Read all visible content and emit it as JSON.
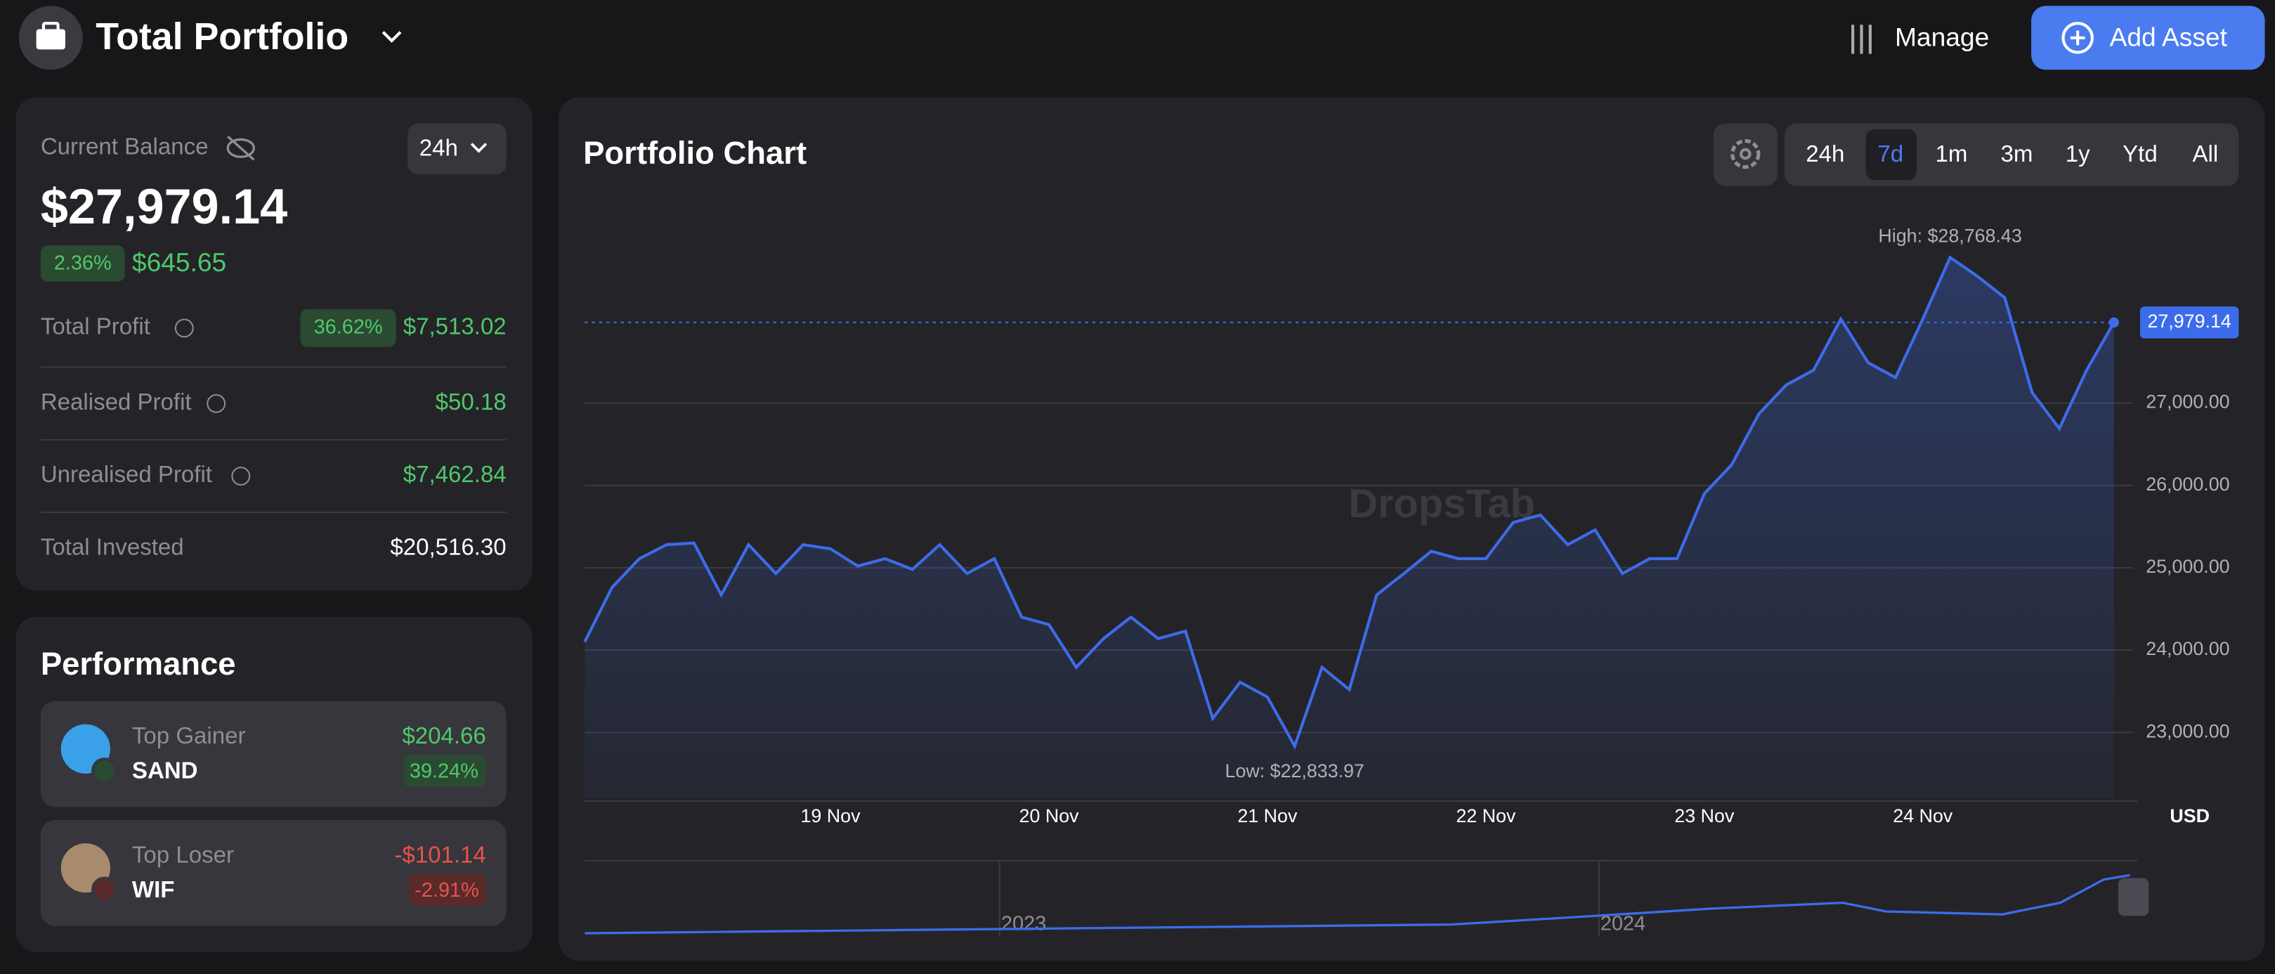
{
  "header": {
    "title": "Total Portfolio",
    "manage": "Manage",
    "add_asset": "Add Asset"
  },
  "balance": {
    "label": "Current Balance",
    "period": "24h",
    "value": "$27,979.14",
    "change_percent": "2.36%",
    "change_value": "$645.65",
    "rows": [
      {
        "label": "Total Profit",
        "percent": "36.62%",
        "value": "$7,513.02"
      },
      {
        "label": "Realised Profit",
        "value": "$50.18"
      },
      {
        "label": "Unrealised Profit",
        "value": "$7,462.84"
      },
      {
        "label": "Total Invested",
        "value": "$20,516.30"
      }
    ]
  },
  "performance": {
    "title": "Performance",
    "items": [
      {
        "label": "Top Gainer",
        "asset": "SAND",
        "value": "$204.66",
        "percent": "39.24%"
      },
      {
        "label": "Top Loser",
        "asset": "WIF",
        "value": "-$101.14",
        "percent": "-2.91%"
      }
    ]
  },
  "chart_data": {
    "type": "line",
    "title": "Portfolio Chart",
    "ranges": [
      "24h",
      "7d",
      "1m",
      "3m",
      "1y",
      "Ytd",
      "All"
    ],
    "active_range": 1,
    "watermark": "DropsTab",
    "categories": [
      null,
      null,
      null,
      null,
      null,
      null,
      null,
      null,
      null,
      "19 Nov",
      null,
      null,
      null,
      null,
      null,
      null,
      null,
      "20 Nov",
      null,
      null,
      null,
      null,
      null,
      null,
      null,
      "21 Nov",
      null,
      null,
      null,
      null,
      null,
      null,
      null,
      "22 Nov",
      null,
      null,
      null,
      null,
      null,
      null,
      null,
      "23 Nov",
      null,
      null,
      null,
      null,
      null,
      null,
      null,
      "24 Nov",
      null,
      null,
      null,
      null,
      null,
      null,
      null
    ],
    "series": [
      {
        "color": "#3d6cea",
        "values": [
          24100,
          24760,
          25110,
          25280,
          25300,
          24670,
          25280,
          24930,
          25280,
          25230,
          25020,
          25110,
          24980,
          25280,
          24930,
          25110,
          24400,
          24310,
          23790,
          24140,
          24400,
          24140,
          24230,
          23170,
          23610,
          23430,
          22833.97,
          23790,
          23520,
          24670,
          24930,
          25200,
          25110,
          25110,
          25550,
          25640,
          25280,
          25460,
          24930,
          25110,
          25110,
          25900,
          26250,
          26870,
          27220,
          27400,
          28020,
          27490,
          27310,
          28020,
          28768.43,
          28540,
          28280,
          27130,
          26690,
          27400,
          27979.14
        ]
      }
    ],
    "ylim": [
      22200,
      29250
    ],
    "yticks": [
      {
        "value": 23000,
        "label": "23,000.00"
      },
      {
        "value": 24000,
        "label": "24,000.00"
      },
      {
        "value": 25000,
        "label": "25,000.00"
      },
      {
        "value": 26000,
        "label": "26,000.00"
      },
      {
        "value": 27000,
        "label": "27,000.00"
      }
    ],
    "y_unit": "USD",
    "last_label": "27,979.14",
    "high_label": "High: $28,768.43",
    "low_label": "Low: $22,833.97",
    "navigator_labels": [
      "2023",
      "2024"
    ]
  }
}
